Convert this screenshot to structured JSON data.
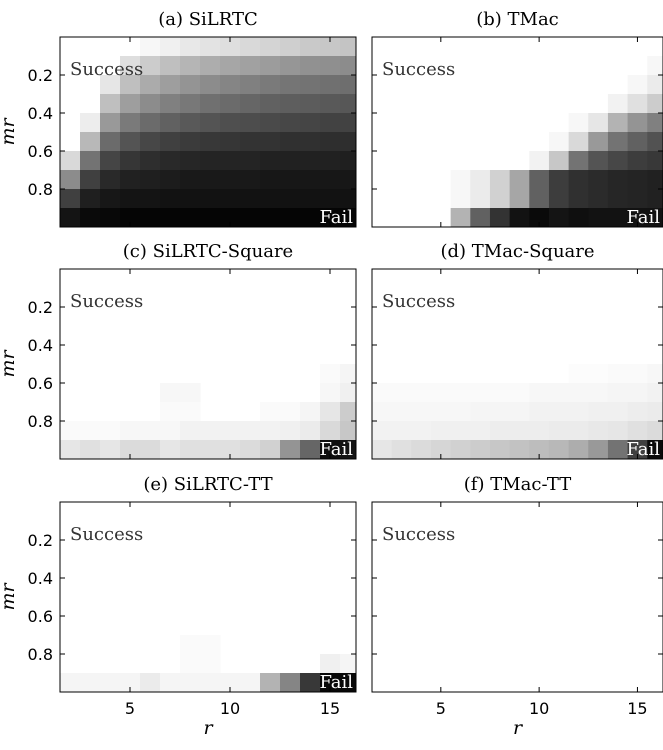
{
  "chart_data": [
    {
      "type": "heatmap",
      "title": "(a) SiLRTC",
      "ylabel": "mr",
      "xlabel": "",
      "x": [
        2,
        3,
        4,
        5,
        6,
        7,
        8,
        9,
        10,
        11,
        12,
        13,
        14,
        15,
        16
      ],
      "y": [
        0.05,
        0.15,
        0.25,
        0.35,
        0.45,
        0.55,
        0.65,
        0.75,
        0.85,
        0.95
      ],
      "xticks": [
        5,
        10,
        15
      ],
      "yticks": [
        0.2,
        0.4,
        0.6,
        0.8
      ],
      "annotations": [
        "Success",
        "Fail"
      ],
      "z": [
        [
          0,
          0,
          0,
          0,
          0.03,
          0.06,
          0.09,
          0.11,
          0.13,
          0.15,
          0.17,
          0.19,
          0.21,
          0.22,
          0.23
        ],
        [
          0,
          0,
          0,
          0.13,
          0.2,
          0.25,
          0.29,
          0.32,
          0.35,
          0.37,
          0.39,
          0.41,
          0.43,
          0.44,
          0.45
        ],
        [
          0,
          0,
          0.1,
          0.25,
          0.33,
          0.38,
          0.42,
          0.45,
          0.48,
          0.5,
          0.52,
          0.54,
          0.55,
          0.56,
          0.57
        ],
        [
          0,
          0,
          0.25,
          0.38,
          0.45,
          0.5,
          0.53,
          0.56,
          0.58,
          0.6,
          0.62,
          0.63,
          0.64,
          0.65,
          0.66
        ],
        [
          0,
          0.07,
          0.4,
          0.52,
          0.58,
          0.62,
          0.65,
          0.67,
          0.69,
          0.7,
          0.71,
          0.72,
          0.73,
          0.74,
          0.74
        ],
        [
          0,
          0.28,
          0.58,
          0.67,
          0.72,
          0.75,
          0.77,
          0.78,
          0.79,
          0.8,
          0.8,
          0.81,
          0.81,
          0.82,
          0.82
        ],
        [
          0.15,
          0.55,
          0.73,
          0.79,
          0.82,
          0.84,
          0.85,
          0.86,
          0.86,
          0.86,
          0.87,
          0.87,
          0.87,
          0.87,
          0.88
        ],
        [
          0.45,
          0.75,
          0.84,
          0.87,
          0.88,
          0.89,
          0.9,
          0.9,
          0.9,
          0.9,
          0.91,
          0.91,
          0.91,
          0.91,
          0.91
        ],
        [
          0.75,
          0.88,
          0.91,
          0.92,
          0.92,
          0.93,
          0.93,
          0.93,
          0.93,
          0.93,
          0.93,
          0.93,
          0.93,
          0.93,
          0.93
        ],
        [
          0.92,
          0.96,
          0.97,
          0.98,
          0.98,
          0.98,
          0.98,
          0.98,
          0.98,
          0.98,
          0.98,
          0.98,
          0.98,
          0.98,
          0.98
        ]
      ]
    },
    {
      "type": "heatmap",
      "title": "(b) TMac",
      "ylabel": "",
      "xlabel": "",
      "x": [
        2,
        3,
        4,
        5,
        6,
        7,
        8,
        9,
        10,
        11,
        12,
        13,
        14,
        15,
        16
      ],
      "y": [
        0.05,
        0.15,
        0.25,
        0.35,
        0.45,
        0.55,
        0.65,
        0.75,
        0.85,
        0.95
      ],
      "xticks": [
        5,
        10,
        15
      ],
      "yticks": [
        0.2,
        0.4,
        0.6,
        0.8
      ],
      "annotations": [
        "Success",
        "Fail"
      ],
      "z": [
        [
          0,
          0,
          0,
          0,
          0,
          0,
          0,
          0,
          0,
          0,
          0,
          0,
          0,
          0,
          0
        ],
        [
          0,
          0,
          0,
          0,
          0,
          0,
          0,
          0,
          0,
          0,
          0,
          0,
          0,
          0,
          0.03
        ],
        [
          0,
          0,
          0,
          0,
          0,
          0,
          0,
          0,
          0,
          0,
          0,
          0,
          0,
          0.03,
          0.08
        ],
        [
          0,
          0,
          0,
          0,
          0,
          0,
          0,
          0,
          0,
          0,
          0,
          0,
          0.05,
          0.12,
          0.2
        ],
        [
          0,
          0,
          0,
          0,
          0,
          0,
          0,
          0,
          0,
          0,
          0.03,
          0.1,
          0.3,
          0.42,
          0.5
        ],
        [
          0,
          0,
          0,
          0,
          0,
          0,
          0,
          0,
          0,
          0.03,
          0.15,
          0.4,
          0.55,
          0.62,
          0.68
        ],
        [
          0,
          0,
          0,
          0,
          0,
          0,
          0,
          0,
          0.05,
          0.22,
          0.55,
          0.67,
          0.72,
          0.76,
          0.78
        ],
        [
          0,
          0,
          0,
          0,
          0.03,
          0.08,
          0.18,
          0.35,
          0.62,
          0.76,
          0.81,
          0.83,
          0.85,
          0.86,
          0.87
        ],
        [
          0,
          0,
          0,
          0,
          0.03,
          0.08,
          0.18,
          0.35,
          0.62,
          0.76,
          0.81,
          0.83,
          0.85,
          0.86,
          0.87
        ],
        [
          0,
          0,
          0,
          0,
          0.3,
          0.62,
          0.8,
          0.93,
          0.96,
          0.92,
          0.94,
          0.93,
          0.93,
          0.93,
          0.93
        ]
      ]
    },
    {
      "type": "heatmap",
      "title": "(c) SiLRTC-Square",
      "ylabel": "mr",
      "xlabel": "",
      "x": [
        2,
        3,
        4,
        5,
        6,
        7,
        8,
        9,
        10,
        11,
        12,
        13,
        14,
        15,
        16
      ],
      "y": [
        0.05,
        0.15,
        0.25,
        0.35,
        0.45,
        0.55,
        0.65,
        0.75,
        0.85,
        0.95
      ],
      "xticks": [
        5,
        10,
        15
      ],
      "yticks": [
        0.2,
        0.4,
        0.6,
        0.8
      ],
      "annotations": [
        "Success",
        "Fail"
      ],
      "z": [
        [
          0,
          0,
          0,
          0,
          0,
          0,
          0,
          0,
          0,
          0,
          0,
          0,
          0,
          0,
          0
        ],
        [
          0,
          0,
          0,
          0,
          0,
          0,
          0,
          0,
          0,
          0,
          0,
          0,
          0,
          0,
          0
        ],
        [
          0,
          0,
          0,
          0,
          0,
          0,
          0,
          0,
          0,
          0,
          0,
          0,
          0,
          0,
          0
        ],
        [
          0,
          0,
          0,
          0,
          0,
          0,
          0,
          0,
          0,
          0,
          0,
          0,
          0,
          0,
          0
        ],
        [
          0,
          0,
          0,
          0,
          0,
          0,
          0,
          0,
          0,
          0,
          0,
          0,
          0,
          0,
          0
        ],
        [
          0,
          0,
          0,
          0,
          0,
          0,
          0,
          0,
          0,
          0,
          0,
          0,
          0,
          0.02,
          0.04
        ],
        [
          0,
          0,
          0,
          0,
          0,
          0.03,
          0.03,
          0,
          0,
          0,
          0,
          0,
          0,
          0.03,
          0.06
        ],
        [
          0,
          0,
          0,
          0,
          0,
          0.02,
          0.02,
          0,
          0,
          0,
          0.02,
          0.02,
          0.04,
          0.1,
          0.2
        ],
        [
          0.02,
          0.02,
          0.02,
          0.03,
          0.03,
          0.03,
          0.05,
          0.05,
          0.05,
          0.05,
          0.05,
          0.06,
          0.08,
          0.15,
          0.22
        ],
        [
          0.1,
          0.12,
          0.1,
          0.14,
          0.14,
          0.1,
          0.12,
          0.12,
          0.12,
          0.14,
          0.18,
          0.42,
          0.6,
          0.94,
          0.92
        ]
      ]
    },
    {
      "type": "heatmap",
      "title": "(d) TMac-Square",
      "ylabel": "",
      "xlabel": "",
      "x": [
        2,
        3,
        4,
        5,
        6,
        7,
        8,
        9,
        10,
        11,
        12,
        13,
        14,
        15,
        16
      ],
      "y": [
        0.05,
        0.15,
        0.25,
        0.35,
        0.45,
        0.55,
        0.65,
        0.75,
        0.85,
        0.95
      ],
      "xticks": [
        5,
        10,
        15
      ],
      "yticks": [
        0.2,
        0.4,
        0.6,
        0.8
      ],
      "annotations": [
        "Success",
        "Fail"
      ],
      "z": [
        [
          0,
          0,
          0,
          0,
          0,
          0,
          0,
          0,
          0,
          0,
          0,
          0,
          0,
          0,
          0
        ],
        [
          0,
          0,
          0,
          0,
          0,
          0,
          0,
          0,
          0,
          0,
          0,
          0,
          0,
          0,
          0
        ],
        [
          0,
          0,
          0,
          0,
          0,
          0,
          0,
          0,
          0,
          0,
          0,
          0,
          0,
          0,
          0
        ],
        [
          0,
          0,
          0,
          0,
          0,
          0,
          0,
          0,
          0,
          0,
          0,
          0,
          0,
          0,
          0
        ],
        [
          0,
          0,
          0,
          0,
          0,
          0,
          0,
          0,
          0,
          0,
          0,
          0,
          0,
          0,
          0
        ],
        [
          0,
          0,
          0,
          0,
          0,
          0,
          0,
          0,
          0,
          0,
          0.01,
          0.01,
          0.02,
          0.02,
          0.03
        ],
        [
          0.02,
          0.02,
          0.02,
          0.02,
          0.02,
          0.02,
          0.02,
          0.02,
          0.03,
          0.03,
          0.03,
          0.03,
          0.04,
          0.04,
          0.05
        ],
        [
          0.03,
          0.03,
          0.03,
          0.03,
          0.03,
          0.04,
          0.04,
          0.04,
          0.05,
          0.05,
          0.05,
          0.06,
          0.06,
          0.07,
          0.08
        ],
        [
          0.05,
          0.05,
          0.05,
          0.06,
          0.06,
          0.06,
          0.07,
          0.07,
          0.07,
          0.08,
          0.08,
          0.09,
          0.1,
          0.12,
          0.14
        ],
        [
          0.1,
          0.12,
          0.14,
          0.16,
          0.18,
          0.2,
          0.22,
          0.24,
          0.26,
          0.28,
          0.32,
          0.4,
          0.55,
          0.75,
          0.96
        ]
      ]
    },
    {
      "type": "heatmap",
      "title": "(e) SiLRTC-TT",
      "ylabel": "mr",
      "xlabel": "r",
      "x": [
        2,
        3,
        4,
        5,
        6,
        7,
        8,
        9,
        10,
        11,
        12,
        13,
        14,
        15,
        16
      ],
      "y": [
        0.05,
        0.15,
        0.25,
        0.35,
        0.45,
        0.55,
        0.65,
        0.75,
        0.85,
        0.95
      ],
      "xticks": [
        5,
        10,
        15
      ],
      "yticks": [
        0.2,
        0.4,
        0.6,
        0.8
      ],
      "annotations": [
        "Success",
        "Fail"
      ],
      "z": [
        [
          0,
          0,
          0,
          0,
          0,
          0,
          0,
          0,
          0,
          0,
          0,
          0,
          0,
          0,
          0
        ],
        [
          0,
          0,
          0,
          0,
          0,
          0,
          0,
          0,
          0,
          0,
          0,
          0,
          0,
          0,
          0
        ],
        [
          0,
          0,
          0,
          0,
          0,
          0,
          0,
          0,
          0,
          0,
          0,
          0,
          0,
          0,
          0
        ],
        [
          0,
          0,
          0,
          0,
          0,
          0,
          0,
          0,
          0,
          0,
          0,
          0,
          0,
          0,
          0
        ],
        [
          0,
          0,
          0,
          0,
          0,
          0,
          0,
          0,
          0,
          0,
          0,
          0,
          0,
          0,
          0
        ],
        [
          0,
          0,
          0,
          0,
          0,
          0,
          0,
          0,
          0,
          0,
          0,
          0,
          0,
          0,
          0
        ],
        [
          0,
          0,
          0,
          0,
          0,
          0,
          0,
          0,
          0,
          0,
          0,
          0,
          0,
          0,
          0
        ],
        [
          0,
          0,
          0,
          0,
          0,
          0,
          0.02,
          0.02,
          0,
          0,
          0,
          0,
          0,
          0,
          0
        ],
        [
          0,
          0,
          0,
          0,
          0,
          0,
          0.02,
          0.02,
          0,
          0,
          0,
          0,
          0,
          0.06,
          0.04
        ],
        [
          0.04,
          0.04,
          0.04,
          0.04,
          0.08,
          0.04,
          0.04,
          0.04,
          0.04,
          0.04,
          0.3,
          0.48,
          0.78,
          0.97,
          0.97
        ]
      ]
    },
    {
      "type": "heatmap",
      "title": "(f) TMac-TT",
      "ylabel": "",
      "xlabel": "r",
      "x": [
        2,
        3,
        4,
        5,
        6,
        7,
        8,
        9,
        10,
        11,
        12,
        13,
        14,
        15,
        16
      ],
      "y": [
        0.05,
        0.15,
        0.25,
        0.35,
        0.45,
        0.55,
        0.65,
        0.75,
        0.85,
        0.95
      ],
      "xticks": [
        5,
        10,
        15
      ],
      "yticks": [
        0.2,
        0.4,
        0.6,
        0.8
      ],
      "annotations": [
        "Success"
      ],
      "z": [
        [
          0,
          0,
          0,
          0,
          0,
          0,
          0,
          0,
          0,
          0,
          0,
          0,
          0,
          0,
          0
        ],
        [
          0,
          0,
          0,
          0,
          0,
          0,
          0,
          0,
          0,
          0,
          0,
          0,
          0,
          0,
          0
        ],
        [
          0,
          0,
          0,
          0,
          0,
          0,
          0,
          0,
          0,
          0,
          0,
          0,
          0,
          0,
          0
        ],
        [
          0,
          0,
          0,
          0,
          0,
          0,
          0,
          0,
          0,
          0,
          0,
          0,
          0,
          0,
          0
        ],
        [
          0,
          0,
          0,
          0,
          0,
          0,
          0,
          0,
          0,
          0,
          0,
          0,
          0,
          0,
          0
        ],
        [
          0,
          0,
          0,
          0,
          0,
          0,
          0,
          0,
          0,
          0,
          0,
          0,
          0,
          0,
          0
        ],
        [
          0,
          0,
          0,
          0,
          0,
          0,
          0,
          0,
          0,
          0,
          0,
          0,
          0,
          0,
          0
        ],
        [
          0,
          0,
          0,
          0,
          0,
          0,
          0,
          0,
          0,
          0,
          0,
          0,
          0,
          0,
          0
        ],
        [
          0,
          0,
          0,
          0,
          0,
          0,
          0,
          0,
          0,
          0,
          0,
          0,
          0,
          0,
          0
        ],
        [
          0,
          0,
          0,
          0,
          0,
          0,
          0,
          0,
          0,
          0,
          0,
          0,
          0,
          0,
          0
        ]
      ]
    }
  ]
}
